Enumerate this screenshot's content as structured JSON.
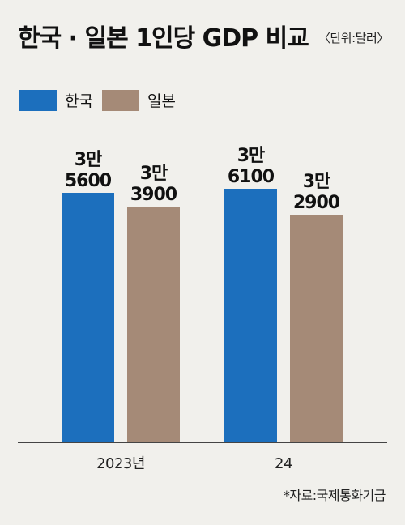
{
  "chart_data": {
    "type": "bar",
    "title": "한국 · 일본 1인당 GDP 비교",
    "unit": "〈단위:달러〉",
    "categories": [
      "2023년",
      "24"
    ],
    "series": [
      {
        "name": "한국",
        "color": "#1c6fbd",
        "values": [
          35600,
          36100
        ],
        "labels": [
          [
            "3만",
            "5600"
          ],
          [
            "3만",
            "6100"
          ]
        ]
      },
      {
        "name": "일본",
        "color": "#a58a77",
        "values": [
          33900,
          32900
        ],
        "labels": [
          [
            "3만",
            "3900"
          ],
          [
            "3만",
            "2900"
          ]
        ]
      }
    ],
    "grid": false,
    "legend": "top-left"
  },
  "source": "*자료:국제통화기금"
}
